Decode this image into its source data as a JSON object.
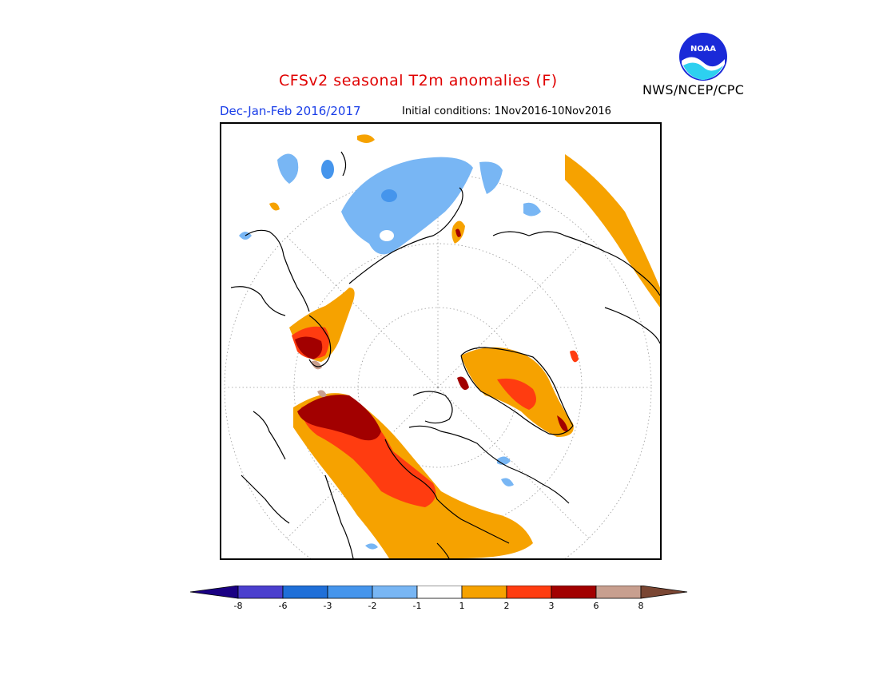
{
  "header": {
    "title": "CFSv2 seasonal T2m anomalies (F)",
    "season": "Dec-Jan-Feb 2016/2017",
    "initial_conditions": "Initial conditions: 1Nov2016-10Nov2016",
    "agency": "NWS/NCEP/CPC",
    "logo_text": "NOAA"
  },
  "legend": {
    "tick_labels": [
      "-8",
      "-6",
      "-3",
      "-2",
      "-1",
      "1",
      "2",
      "3",
      "6",
      "8"
    ],
    "colors": [
      "#1a0083",
      "#4b3fce",
      "#1f6fd8",
      "#4595ec",
      "#78b6f4",
      "#ffffff",
      "#f6a200",
      "#ff3c10",
      "#a20000",
      "#c89f8f",
      "#7a4633"
    ]
  },
  "map": {
    "projection": "north-polar-stereographic",
    "variable": "T2m anomaly (F)",
    "features": [
      {
        "name": "north-america-warm-anomaly",
        "level": "2 to >6"
      },
      {
        "name": "greenland-warm-anomaly",
        "level": "1 to 6"
      },
      {
        "name": "east-asia-warm-anomaly",
        "level": "1 to >6"
      },
      {
        "name": "europe-warm-band",
        "level": "1 to 2"
      },
      {
        "name": "siberia-cold-anomaly",
        "level": "-1 to -3"
      }
    ]
  }
}
